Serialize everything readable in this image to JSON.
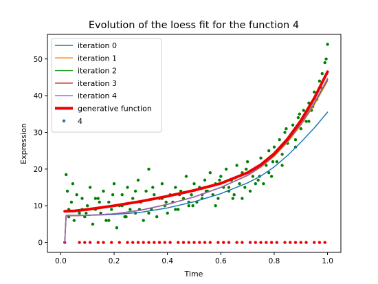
{
  "chart_data": {
    "type": "scatter",
    "title": "Evolution of the loess fit for the function 4",
    "xlabel": "Time",
    "ylabel": "Expression",
    "xlim": [
      -0.05,
      1.05
    ],
    "ylim": [
      -2.7,
      56.7
    ],
    "xticks": [
      0.0,
      0.2,
      0.4,
      0.6,
      0.8,
      1.0
    ],
    "xtick_labels": [
      "0.0",
      "0.2",
      "0.4",
      "0.6",
      "0.8",
      "1.0"
    ],
    "yticks": [
      0,
      10,
      20,
      30,
      40,
      50
    ],
    "ytick_labels": [
      "0",
      "10",
      "20",
      "30",
      "40",
      "50"
    ],
    "grid": false,
    "legend_position": "top-left",
    "series": [
      {
        "name": "iteration 0",
        "kind": "line",
        "color": "#1f77b4",
        "width": 1.5,
        "x": [
          0.015,
          0.02,
          0.05,
          0.1,
          0.2,
          0.3,
          0.4,
          0.5,
          0.6,
          0.7,
          0.75,
          0.8,
          0.85,
          0.9,
          0.95,
          1.0
        ],
        "y": [
          0,
          7.4,
          7.4,
          7.4,
          7.6,
          8.2,
          9.4,
          11.1,
          13.3,
          16.2,
          18.1,
          20.6,
          23.7,
          27.3,
          31.2,
          35.5
        ]
      },
      {
        "name": "iteration 1",
        "kind": "line",
        "color": "#ff7f0e",
        "width": 1.5,
        "x": [
          0.015,
          0.02,
          0.05,
          0.1,
          0.2,
          0.3,
          0.4,
          0.5,
          0.6,
          0.7,
          0.75,
          0.8,
          0.85,
          0.9,
          0.95,
          1.0
        ],
        "y": [
          0,
          7.3,
          7.3,
          7.4,
          7.8,
          8.8,
          10.4,
          12.4,
          15.0,
          18.2,
          20.5,
          23.5,
          27.3,
          32.0,
          37.5,
          44.0
        ]
      },
      {
        "name": "iteration 2",
        "kind": "line",
        "color": "#2ca02c",
        "width": 1.5,
        "x": [
          0.015,
          0.02,
          0.05,
          0.1,
          0.2,
          0.3,
          0.4,
          0.5,
          0.6,
          0.7,
          0.75,
          0.8,
          0.85,
          0.9,
          0.95,
          1.0
        ],
        "y": [
          0,
          7.3,
          7.3,
          7.4,
          7.8,
          8.8,
          10.4,
          12.4,
          15.0,
          18.3,
          20.6,
          23.6,
          27.5,
          32.2,
          37.8,
          44.3
        ]
      },
      {
        "name": "iteration 3",
        "kind": "line",
        "color": "#d62728",
        "width": 1.5,
        "x": [
          0.015,
          0.02,
          0.05,
          0.1,
          0.2,
          0.3,
          0.4,
          0.5,
          0.6,
          0.7,
          0.75,
          0.8,
          0.85,
          0.9,
          0.95,
          1.0
        ],
        "y": [
          0,
          7.3,
          7.3,
          7.4,
          7.8,
          8.8,
          10.4,
          12.4,
          15.0,
          18.3,
          20.6,
          23.7,
          27.6,
          32.3,
          38.0,
          44.5
        ]
      },
      {
        "name": "iteration 4",
        "kind": "line",
        "color": "#9467bd",
        "width": 1.5,
        "x": [
          0.015,
          0.02,
          0.05,
          0.1,
          0.2,
          0.3,
          0.4,
          0.5,
          0.6,
          0.7,
          0.75,
          0.8,
          0.85,
          0.9,
          0.95,
          1.0
        ],
        "y": [
          0,
          7.3,
          7.3,
          7.4,
          7.8,
          8.8,
          10.4,
          12.4,
          15.0,
          18.3,
          20.7,
          23.8,
          27.7,
          32.4,
          38.1,
          44.7
        ]
      },
      {
        "name": "generative function",
        "kind": "line",
        "color": "#ee0000",
        "width": 4,
        "x": [
          0.015,
          0.05,
          0.1,
          0.2,
          0.3,
          0.4,
          0.5,
          0.6,
          0.7,
          0.75,
          0.8,
          0.85,
          0.9,
          0.95,
          1.0
        ],
        "y": [
          8.5,
          8.6,
          9.0,
          10.0,
          11.2,
          12.6,
          14.2,
          16.1,
          19.0,
          21.2,
          24.2,
          28.2,
          33.2,
          39.3,
          46.5
        ]
      },
      {
        "name": "4",
        "kind": "scatter",
        "color": "#1f77b4",
        "x": [],
        "y": []
      },
      {
        "name": "",
        "kind": "scatter",
        "color": "#008000",
        "x": [
          0.02,
          0.025,
          0.03,
          0.04,
          0.05,
          0.06,
          0.07,
          0.08,
          0.09,
          0.1,
          0.11,
          0.12,
          0.13,
          0.14,
          0.15,
          0.16,
          0.17,
          0.18,
          0.19,
          0.2,
          0.21,
          0.22,
          0.23,
          0.24,
          0.25,
          0.26,
          0.27,
          0.28,
          0.29,
          0.3,
          0.31,
          0.32,
          0.33,
          0.34,
          0.35,
          0.36,
          0.37,
          0.38,
          0.39,
          0.4,
          0.41,
          0.42,
          0.43,
          0.44,
          0.45,
          0.46,
          0.47,
          0.48,
          0.49,
          0.5,
          0.51,
          0.52,
          0.53,
          0.54,
          0.55,
          0.56,
          0.57,
          0.58,
          0.59,
          0.6,
          0.61,
          0.62,
          0.63,
          0.64,
          0.65,
          0.66,
          0.67,
          0.68,
          0.69,
          0.7,
          0.71,
          0.72,
          0.73,
          0.74,
          0.75,
          0.76,
          0.77,
          0.78,
          0.79,
          0.8,
          0.81,
          0.82,
          0.83,
          0.84,
          0.85,
          0.86,
          0.87,
          0.88,
          0.89,
          0.9,
          0.91,
          0.92,
          0.93,
          0.94,
          0.95,
          0.96,
          0.97,
          0.98,
          0.99,
          1.0,
          0.03,
          0.08,
          0.13,
          0.18,
          0.23,
          0.28,
          0.33,
          0.38,
          0.43,
          0.48,
          0.53,
          0.58,
          0.63,
          0.68,
          0.73,
          0.78,
          0.83,
          0.88,
          0.93,
          0.98,
          0.045,
          0.095,
          0.145,
          0.195,
          0.245,
          0.295,
          0.345,
          0.395,
          0.445,
          0.495,
          0.545,
          0.595,
          0.645,
          0.695,
          0.745,
          0.795,
          0.845,
          0.895,
          0.945,
          0.995
        ],
        "y": [
          18.5,
          14,
          9,
          11,
          6,
          13,
          8,
          12,
          7,
          10,
          15,
          5,
          9,
          12,
          8,
          14,
          6,
          11,
          9,
          16,
          4,
          10,
          13,
          7,
          15,
          9,
          12,
          8,
          17,
          11,
          6,
          14,
          20,
          9,
          13,
          7,
          12,
          16,
          10,
          8,
          13,
          11,
          15,
          9,
          14,
          12,
          18,
          10,
          13,
          16,
          11,
          15,
          12,
          17,
          14,
          19,
          13,
          16,
          12,
          18,
          15,
          20,
          14,
          17,
          13,
          21,
          16,
          19,
          15,
          22,
          14,
          18,
          20,
          17,
          23,
          16,
          21,
          25,
          18,
          26,
          22,
          28,
          24,
          30,
          27,
          29,
          32,
          28,
          34,
          31,
          36,
          33,
          38,
          36,
          41,
          39,
          44,
          42,
          49,
          54,
          7,
          9,
          12,
          6,
          10,
          14,
          8,
          12,
          9,
          11,
          13,
          10,
          15,
          12,
          16,
          19,
          21,
          26,
          33,
          46,
          16,
          8,
          11,
          13,
          7,
          9,
          15,
          11,
          13,
          10,
          14,
          17,
          12,
          20,
          18,
          22,
          31,
          35,
          37,
          50
        ]
      },
      {
        "name": "",
        "kind": "scatter",
        "color": "#ee0000",
        "x": [
          0.015,
          0.07,
          0.09,
          0.11,
          0.14,
          0.16,
          0.19,
          0.22,
          0.25,
          0.27,
          0.29,
          0.31,
          0.33,
          0.35,
          0.37,
          0.39,
          0.41,
          0.44,
          0.46,
          0.48,
          0.5,
          0.52,
          0.54,
          0.56,
          0.59,
          0.61,
          0.63,
          0.66,
          0.68,
          0.71,
          0.73,
          0.75,
          0.77,
          0.79,
          0.81,
          0.84,
          0.86,
          0.88,
          0.9,
          0.92,
          0.95,
          0.97,
          0.99
        ],
        "y": [
          0,
          0,
          0,
          0,
          0,
          0,
          0,
          0,
          0,
          0,
          0,
          0,
          0,
          0,
          0,
          0,
          0,
          0,
          0,
          0,
          0,
          0,
          0,
          0,
          0,
          0,
          0,
          0,
          0,
          0,
          0,
          0,
          0,
          0,
          0,
          0,
          0,
          0,
          0,
          0,
          0,
          0,
          0
        ]
      }
    ]
  }
}
